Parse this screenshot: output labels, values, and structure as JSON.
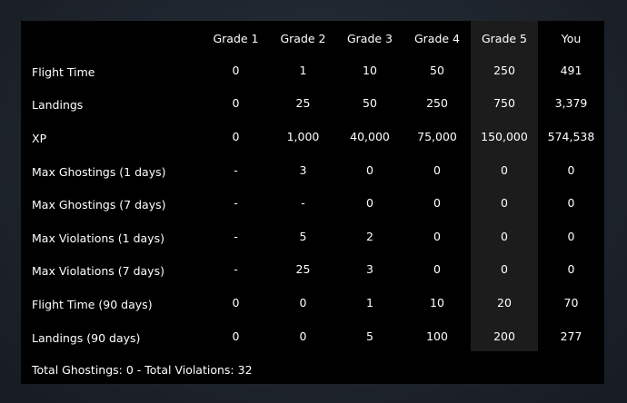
{
  "table": {
    "columns": [
      "",
      "Grade 1",
      "Grade 2",
      "Grade 3",
      "Grade 4",
      "Grade 5",
      "You"
    ],
    "rows": [
      {
        "label": "Flight Time",
        "values": [
          "0",
          "1",
          "10",
          "50",
          "250",
          "491"
        ]
      },
      {
        "label": "Landings",
        "values": [
          "0",
          "25",
          "50",
          "250",
          "750",
          "3,379"
        ]
      },
      {
        "label": "XP",
        "values": [
          "0",
          "1,000",
          "40,000",
          "75,000",
          "150,000",
          "574,538"
        ]
      },
      {
        "label": "Max Ghostings (1 days)",
        "values": [
          "-",
          "3",
          "0",
          "0",
          "0",
          "0"
        ]
      },
      {
        "label": "Max Ghostings (7 days)",
        "values": [
          "-",
          "-",
          "0",
          "0",
          "0",
          "0"
        ]
      },
      {
        "label": "Max Violations (1 days)",
        "values": [
          "-",
          "5",
          "2",
          "0",
          "0",
          "0"
        ]
      },
      {
        "label": "Max Violations (7 days)",
        "values": [
          "-",
          "25",
          "3",
          "0",
          "0",
          "0"
        ]
      },
      {
        "label": "Flight Time (90 days)",
        "values": [
          "0",
          "0",
          "1",
          "10",
          "20",
          "70"
        ]
      },
      {
        "label": "Landings (90 days)",
        "values": [
          "0",
          "0",
          "5",
          "100",
          "200",
          "277"
        ]
      }
    ],
    "highlighted_column": "Grade 5"
  },
  "footer": {
    "summary": "Total Ghostings: 0 - Total Violations: 32"
  },
  "colors": {
    "background": "#1f252e",
    "panel": "#000000",
    "highlight_column": "#1c1c1c",
    "text": "#ffffff"
  }
}
